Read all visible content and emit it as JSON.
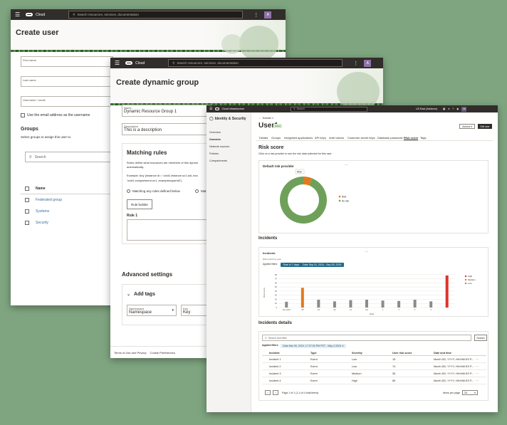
{
  "create_user": {
    "topbar": {
      "brand": "Cloud",
      "search_placeholder": "Search resources, services, documentation",
      "avatar": "A"
    },
    "title": "Create user",
    "fields": [
      {
        "label": "First name",
        "value": ""
      },
      {
        "label": "Last name",
        "value": ""
      },
      {
        "label": "Username / email",
        "value": ""
      }
    ],
    "use_email_label": "Use the email address as the username",
    "groups_heading": "Groups",
    "groups_desc": "Select groups to assign this user to.",
    "search_placeholder": "Search",
    "name_header": "Name",
    "groups": [
      "Federated group",
      "Systems",
      "Security"
    ]
  },
  "dynamic_group": {
    "topbar": {
      "brand": "Cloud",
      "search_placeholder": "Search resources, services, documentation",
      "avatar": "A"
    },
    "title": "Create dynamic group",
    "name_label": "Name",
    "name_value": "Dynamic Resource Group 1",
    "desc_label": "Description",
    "desc_value": "This is a description",
    "matching_heading": "Matching rules",
    "matching_desc1": "Rules define what resources are members of this dynam",
    "matching_desc2": "automatically.",
    "example1": "Example: Any {instance.id = 'ocid1.instance.oc1.iad..exa",
    "example2": "'ocid1.compartment.oc1..examplesuparid2'}",
    "radio_any": "Matching any rules defined below",
    "radio_all": "Mat",
    "rule_builder": "Rule builder",
    "rule_label": "Rule 1",
    "advanced_heading": "Advanced settings",
    "add_tags": "Add tags",
    "namespace_label": "Namespace",
    "namespace_value": "Namespace",
    "key_label": "Key",
    "key_value": "Key",
    "footer_terms": "Terms of Use and Privacy",
    "footer_cookie": "Cookie Preferences"
  },
  "user_detail": {
    "topbar": {
      "brand": "Cloud Infrastructure",
      "search_placeholder": "Search",
      "region": "US East (Ashburn)",
      "avatar": "KB"
    },
    "sidebar": {
      "title": "Identity & Security",
      "items": [
        "Overview",
        "Domains",
        "Network sources",
        "Policies",
        "Compartments"
      ]
    },
    "breadcrumb": "Domain 1",
    "title": "User1",
    "status": "Active",
    "actions_label": "Actions",
    "edit_label": "Edit user",
    "tabs": [
      "Details",
      "Groups",
      "Integrated applications",
      "API keys",
      "Auth tokens",
      "Customer secret keys",
      "Database password",
      "Risk score",
      "Tags"
    ],
    "risk_heading": "Risk score",
    "risk_desc": "Click on a risk provider to see the risk data collected for this user",
    "provider_title": "Default risk provider",
    "donut_tooltip": "Risk",
    "donut_legend": [
      "Risk",
      "No risk"
    ],
    "incidents_heading": "Incidents",
    "incidents_card_title": "Incidents",
    "incidents_desc": "Risk events by type",
    "applied_filters": "Applied filters",
    "filter_chips": [
      "Time in 7 days",
      "Date Sep 01, 2024 - Sep 05, 2024"
    ],
    "bar_legend": [
      "High",
      "Medium",
      "Low"
    ],
    "ylabel": "Risk score",
    "xlabel": "Date",
    "details_heading": "Incidents details",
    "details_search": "Search and filter",
    "details_search_btn": "Search",
    "details_filter_label": "Applied filters",
    "details_filter_chip": "Date Mar 06, 2024, 17:07:00 PM PST - May 4 2024 ✕",
    "columns": [
      "Incident",
      "Type",
      "Severity",
      "User risk score",
      "Date and time"
    ],
    "rows": [
      [
        "Incident 1",
        "Event",
        "Low",
        "15",
        "Month DD, YYYY, HH:MM:SS P..."
      ],
      [
        "Incident 2",
        "Event",
        "Low",
        "74",
        "Month DD, YYYY, HH:MM:SS P..."
      ],
      [
        "Incident 3",
        "Event",
        "Medium",
        "35",
        "Month DD, YYYY, HH:MM:SS P..."
      ],
      [
        "Incident 4",
        "Event",
        "High",
        "89",
        "Month DD, YYYY, HH:MM:SS P..."
      ]
    ],
    "pagination": "Page 1 of 1  (1-4 of 4 total items)",
    "items_per_page_label": "Items per page",
    "items_per_page_value": "25"
  },
  "chart_data": [
    {
      "type": "pie",
      "title": "Default risk provider",
      "slices": [
        {
          "name": "Risk",
          "value": 6,
          "color": "#e07a1f"
        },
        {
          "name": "No risk",
          "value": 94,
          "color": "#6fa05a"
        }
      ]
    },
    {
      "type": "bar",
      "title": "Incidents",
      "categories": [
        "1",
        "2",
        "3",
        "4",
        "5",
        "6",
        "7",
        "8",
        "9",
        "10",
        "11"
      ],
      "tick_labels": [
        "Nov 2024",
        "28",
        "29",
        "30",
        "31",
        "Oct",
        "1",
        "2",
        "3",
        "4"
      ],
      "values": [
        14,
        48,
        19,
        15,
        18,
        19,
        17,
        16,
        19,
        15,
        78
      ],
      "severity": [
        "Low",
        "Medium",
        "Low",
        "Low",
        "Low",
        "Low",
        "Low",
        "Low",
        "Low",
        "Low",
        "High"
      ],
      "colors": {
        "High": "#d9342b",
        "Medium": "#e07a1f",
        "Low": "#8e8a85"
      },
      "yticks": [
        "0",
        "10",
        "20",
        "30",
        "40",
        "50",
        "60",
        "70",
        "80"
      ],
      "ylim": [
        0,
        90
      ]
    }
  ]
}
